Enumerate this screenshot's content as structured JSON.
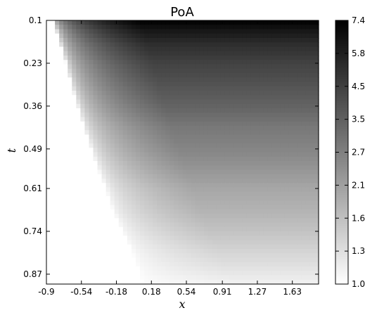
{
  "chart_data": {
    "type": "heatmap",
    "title": "PoA",
    "xlabel": "x",
    "ylabel": "t",
    "x_ticks": [
      "-0.9",
      "-0.54",
      "-0.18",
      "0.18",
      "0.54",
      "0.91",
      "1.27",
      "1.63"
    ],
    "y_ticks": [
      "0.1",
      "0.23",
      "0.36",
      "0.49",
      "0.61",
      "0.74",
      "0.87"
    ],
    "xlim": [
      -0.9,
      1.9
    ],
    "ylim": [
      0.1,
      0.9
    ],
    "y_inverted": true,
    "colorbar_ticks": [
      "1.0",
      "1.3",
      "1.6",
      "2.1",
      "2.7",
      "3.5",
      "4.5",
      "5.8",
      "7.4"
    ],
    "colorbar_range": [
      1.0,
      7.4
    ],
    "colormap": "gray_r",
    "colors": {
      "low": "#ffffff",
      "high": "#000000"
    },
    "grid": false,
    "boundary": {
      "description": "Left edge of non-trivial region (PoA > 1); region left of curve is white (PoA = 1)",
      "t": [
        0.1,
        0.13,
        0.17,
        0.23,
        0.29,
        0.36,
        0.42,
        0.49,
        0.55,
        0.61,
        0.68,
        0.74,
        0.8,
        0.87,
        0.9
      ],
      "x": [
        -0.84,
        -0.8,
        -0.76,
        -0.7,
        -0.65,
        -0.58,
        -0.52,
        -0.44,
        -0.37,
        -0.29,
        -0.21,
        -0.12,
        -0.02,
        0.06,
        0.1
      ]
    },
    "values_at_t": {
      "t": [
        0.1,
        0.13,
        0.17,
        0.23,
        0.29,
        0.36,
        0.42,
        0.49,
        0.55,
        0.61,
        0.68,
        0.74,
        0.8,
        0.87,
        0.9
      ],
      "poa_right_edge": [
        7.4,
        6.2,
        5.2,
        4.4,
        3.9,
        3.4,
        2.9,
        2.6,
        2.3,
        2.0,
        1.8,
        1.6,
        1.4,
        1.2,
        1.1
      ]
    }
  }
}
